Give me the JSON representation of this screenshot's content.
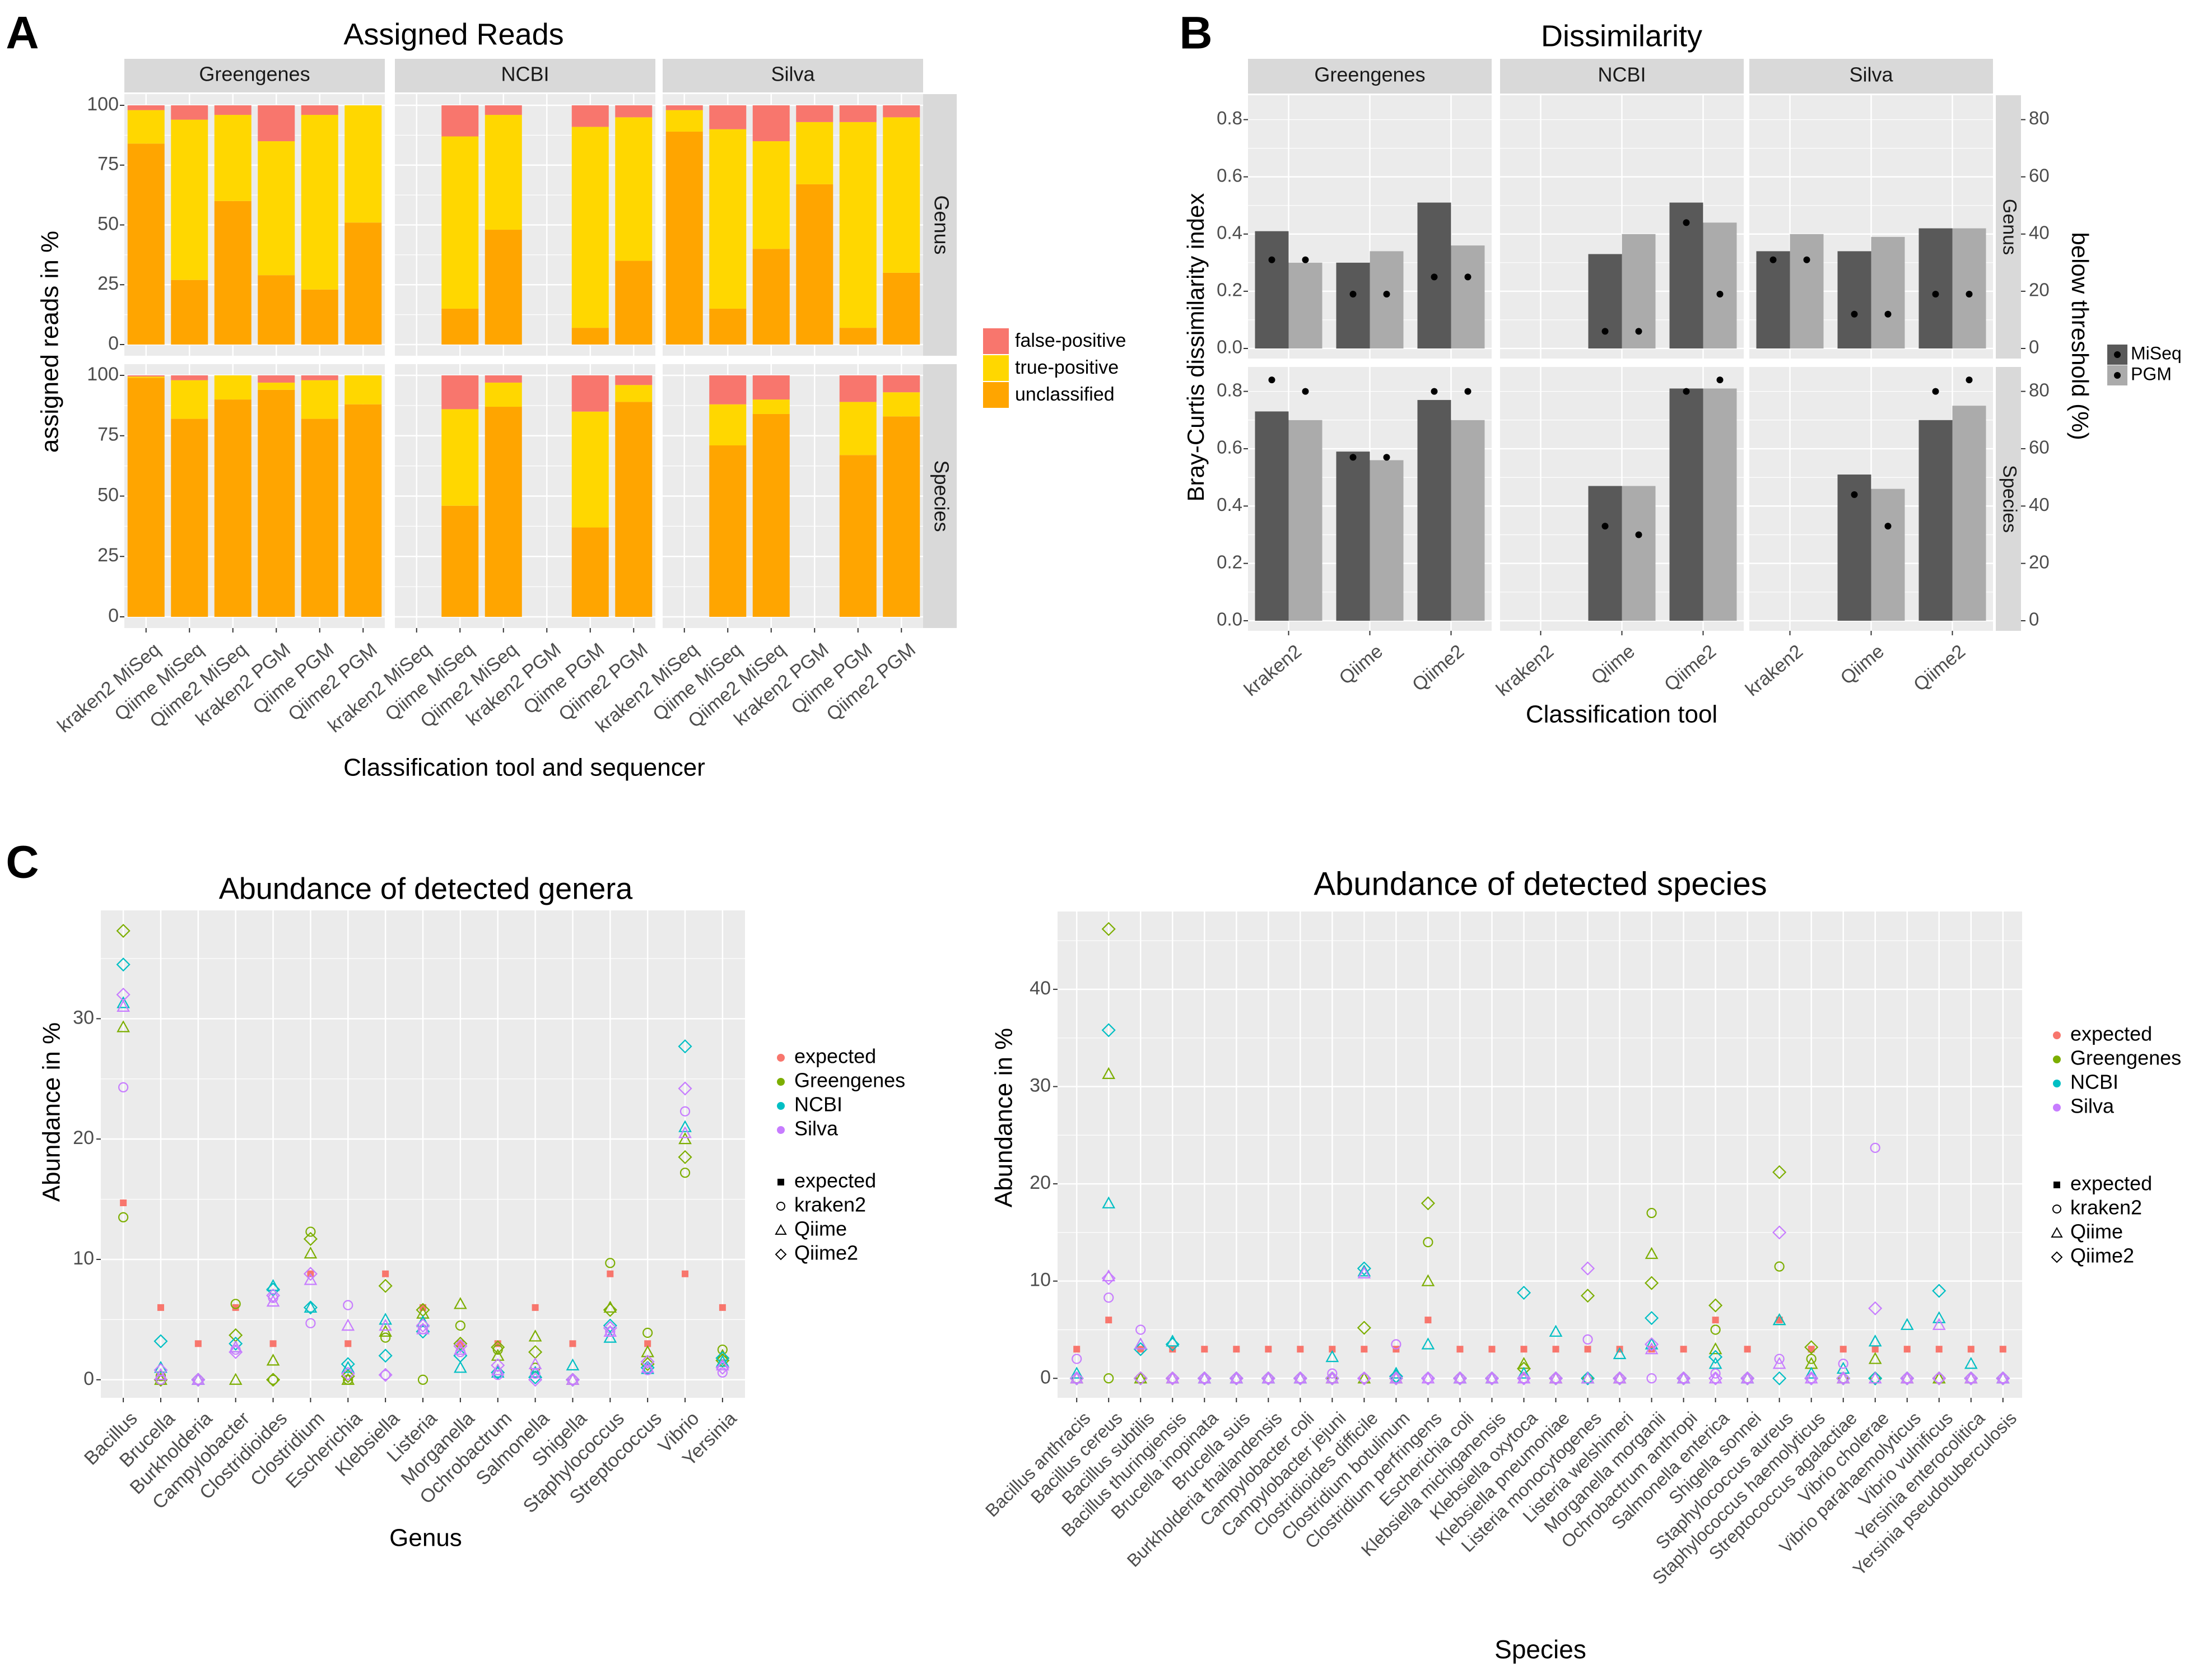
{
  "colors": {
    "false_positive": "#F8766D",
    "true_positive": "#FFD700",
    "unclassified": "#FFA500",
    "miseq": "#595959",
    "pgm": "#ABABAB",
    "expected": "#F8766D",
    "greengenes": "#7CAE00",
    "ncbi": "#00BFC4",
    "silva": "#C77CFF",
    "panel_bg": "#EBEBEB",
    "strip_bg": "#D9D9D9"
  },
  "panel_labels": [
    "A",
    "B",
    "C"
  ],
  "chart_data": [
    {
      "id": "A",
      "type": "bar",
      "stacked": true,
      "title": "Assigned Reads",
      "xlabel": "Classification tool and sequencer",
      "ylabel": "assigned reads in %",
      "ylim": [
        0,
        100
      ],
      "yticks": [
        "0",
        "25",
        "50",
        "75",
        "100"
      ],
      "facet_cols": [
        "Greengenes",
        "NCBI",
        "Silva"
      ],
      "facet_rows": [
        "Genus",
        "Species"
      ],
      "categories": [
        "kraken2 MiSeq",
        "Qiime MiSeq",
        "Qiime2 MiSeq",
        "kraken2 PGM",
        "Qiime PGM",
        "Qiime2 PGM"
      ],
      "legend": [
        "false-positive",
        "true-positive",
        "unclassified"
      ],
      "data": {
        "Genus": {
          "Greengenes": [
            [
              84,
              14,
              2
            ],
            [
              27,
              67,
              6
            ],
            [
              60,
              36,
              4
            ],
            [
              29,
              56,
              15
            ],
            [
              23,
              73,
              4
            ],
            [
              51,
              49,
              0
            ]
          ],
          "NCBI": [
            null,
            [
              15,
              72,
              13
            ],
            [
              48,
              48,
              4
            ],
            null,
            [
              7,
              84,
              9
            ],
            [
              35,
              60,
              5
            ]
          ],
          "Silva": [
            [
              89,
              9,
              2
            ],
            [
              15,
              75,
              10
            ],
            [
              40,
              45,
              15
            ],
            [
              67,
              26,
              7
            ],
            [
              7,
              86,
              7
            ],
            [
              30,
              65,
              5
            ]
          ]
        },
        "Species": {
          "Greengenes": [
            [
              99,
              0.5,
              0.5
            ],
            [
              82,
              16,
              2
            ],
            [
              90,
              10,
              0
            ],
            [
              94,
              3,
              3
            ],
            [
              82,
              16,
              2
            ],
            [
              88,
              12,
              0
            ]
          ],
          "NCBI": [
            null,
            [
              46,
              40,
              14
            ],
            [
              87,
              10,
              3
            ],
            null,
            [
              37,
              48,
              15
            ],
            [
              89,
              7,
              4
            ]
          ],
          "Silva": [
            null,
            [
              71,
              17,
              12
            ],
            [
              84,
              6,
              10
            ],
            null,
            [
              67,
              22,
              11
            ],
            [
              83,
              10,
              7
            ]
          ]
        }
      }
    },
    {
      "id": "B",
      "type": "bar",
      "title": "Dissimilarity",
      "xlabel": "Classification tool",
      "ylabel": "Bray-Curtis dissimilarity index",
      "y2label": "below threshold (%)",
      "ylim": [
        0,
        0.85
      ],
      "yticks": [
        "0.0",
        "0.2",
        "0.4",
        "0.6",
        "0.8"
      ],
      "y2ticks": [
        "0",
        "20",
        "40",
        "60",
        "80"
      ],
      "facet_cols": [
        "Greengenes",
        "NCBI",
        "Silva"
      ],
      "facet_rows": [
        "Genus",
        "Species"
      ],
      "categories": [
        "kraken2",
        "Qiime",
        "Qiime2"
      ],
      "legend": [
        "MiSeq",
        "PGM"
      ],
      "data": {
        "Genus": {
          "Greengenes": [
            [
              0.41,
              0.3
            ],
            [
              0.3,
              0.34
            ],
            [
              0.51,
              0.36
            ]
          ],
          "NCBI": [
            [
              null,
              null
            ],
            [
              0.33,
              0.4
            ],
            [
              0.51,
              0.44
            ]
          ],
          "Silva": [
            [
              0.34,
              0.4
            ],
            [
              0.34,
              0.39
            ],
            [
              0.42,
              0.42
            ]
          ]
        },
        "Species": {
          "Greengenes": [
            [
              0.73,
              0.7
            ],
            [
              0.59,
              0.56
            ],
            [
              0.77,
              0.7
            ]
          ],
          "NCBI": [
            [
              null,
              null
            ],
            [
              0.47,
              0.47
            ],
            [
              0.81,
              0.81
            ]
          ],
          "Silva": [
            [
              null,
              null
            ],
            [
              0.51,
              0.46
            ],
            [
              0.7,
              0.75
            ]
          ]
        }
      },
      "threshold_points": {
        "Genus": {
          "Greengenes": [
            [
              31,
              31
            ],
            [
              19,
              19
            ],
            [
              25,
              25
            ]
          ],
          "NCBI": [
            [
              null,
              null
            ],
            [
              6,
              6
            ],
            [
              44,
              19
            ]
          ],
          "Silva": [
            [
              31,
              31
            ],
            [
              12,
              12
            ],
            [
              19,
              19
            ]
          ]
        },
        "Species": {
          "Greengenes": [
            [
              84,
              80
            ],
            [
              57,
              57
            ],
            [
              80,
              80
            ]
          ],
          "NCBI": [
            [
              null,
              null
            ],
            [
              33,
              30
            ],
            [
              80,
              84
            ]
          ],
          "Silva": [
            [
              null,
              null
            ],
            [
              44,
              33
            ],
            [
              80,
              84
            ]
          ]
        }
      }
    },
    {
      "id": "C1",
      "type": "scatter",
      "title": "Abundance of detected genera",
      "xlabel": "Genus",
      "ylabel": "Abundance in %",
      "ylim": [
        -1.5,
        39
      ],
      "yticks": [
        0,
        10,
        20,
        30
      ],
      "categories": [
        "Bacillus",
        "Brucella",
        "Burkholderia",
        "Campylobacter",
        "Clostridioides",
        "Clostridium",
        "Escherichia",
        "Klebsiella",
        "Listeria",
        "Morganella",
        "Ochrobactrum",
        "Salmonella",
        "Shigella",
        "Staphylococcus",
        "Streptococcus",
        "Vibrio",
        "Yersinia"
      ],
      "legend_color": [
        "expected",
        "Greengenes",
        "NCBI",
        "Silva"
      ],
      "legend_shape": [
        "expected",
        "kraken2",
        "Qiime",
        "Qiime2"
      ],
      "expected": [
        14.7,
        6,
        3,
        6,
        3,
        8.8,
        3,
        8.8,
        6,
        3,
        3,
        6,
        3,
        8.8,
        3,
        8.8,
        6
      ],
      "observed": {
        "Greengenes": {
          "kraken2": [
            13.5,
            0.3,
            0,
            6.3,
            0,
            12.3,
            0,
            3.5,
            0,
            4.5,
            2.5,
            1.0,
            0,
            9.7,
            3.9,
            17.2,
            2.5
          ],
          "Qiime": [
            29.3,
            0,
            0,
            0,
            1.6,
            10.5,
            0,
            4.0,
            5.5,
            6.3,
            2.0,
            3.6,
            0,
            6.0,
            2.3,
            20.0,
            2.0
          ],
          "Qiime2": [
            37.3,
            0,
            0,
            3.7,
            0,
            11.7,
            0.3,
            7.8,
            5.8,
            3.0,
            2.7,
            2.3,
            0,
            5.8,
            1.3,
            18.5,
            1.6
          ]
        },
        "NCBI": {
          "kraken2": [
            null,
            null,
            null,
            null,
            null,
            null,
            null,
            null,
            null,
            null,
            null,
            null,
            null,
            null,
            null,
            null,
            null
          ],
          "Qiime": [
            31.3,
            1.0,
            0,
            2.7,
            7.8,
            6.0,
            1.0,
            5.0,
            4.8,
            1.0,
            0.6,
            0.6,
            1.2,
            3.5,
            0.9,
            21.0,
            1.5
          ],
          "Qiime2": [
            34.5,
            3.2,
            0,
            3.0,
            7.5,
            6.0,
            1.3,
            2.0,
            4.0,
            2.0,
            0.6,
            0.2,
            0,
            4.5,
            1.0,
            27.7,
            1.8
          ]
        },
        "Silva": {
          "kraken2": [
            24.3,
            0,
            0,
            2.5,
            6.8,
            4.7,
            6.2,
            0.4,
            4.2,
            2.3,
            0.4,
            0.5,
            0,
            4.0,
            0.8,
            22.3,
            0.6
          ],
          "Qiime": [
            31.0,
            0.4,
            0,
            2.7,
            6.5,
            8.3,
            4.5,
            4.5,
            4.2,
            2.5,
            0.8,
            1.3,
            0,
            4.0,
            1.0,
            20.5,
            1.2
          ],
          "Qiime2": [
            32.0,
            0.8,
            0,
            2.3,
            7.0,
            8.8,
            0.5,
            0.4,
            4.5,
            2.8,
            1.2,
            0,
            0,
            4.3,
            1.5,
            24.2,
            1.0
          ]
        }
      }
    },
    {
      "id": "C2",
      "type": "scatter",
      "title": "Abundance of detected species",
      "xlabel": "Species",
      "ylabel": "Abundance in %",
      "ylim": [
        -2,
        48
      ],
      "yticks": [
        0,
        10,
        20,
        30,
        40
      ],
      "categories": [
        "Bacillus anthracis",
        "Bacillus cereus",
        "Bacillus subtilis",
        "Bacillus thuringiensis",
        "Brucella inopinata",
        "Brucella suis",
        "Burkholderia thailandensis",
        "Campylobacter coli",
        "Campylobacter jejuni",
        "Clostridioides difficile",
        "Clostridium botulinum",
        "Clostridium perfringens",
        "Escherichia coli",
        "Klebsiella michiganensis",
        "Klebsiella oxytoca",
        "Klebsiella pneumoniae",
        "Listeria monocytogenes",
        "Listeria welshimeri",
        "Morganella morganii",
        "Ochrobactrum anthropi",
        "Salmonella enterica",
        "Shigella sonnei",
        "Staphylococcus aureus",
        "Staphylococcus haemolyticus",
        "Streptococcus agalactiae",
        "Vibrio cholerae",
        "Vibrio parahaemolyticus",
        "Vibrio vulnificus",
        "Yersinia enterocolitica",
        "Yersinia pseudotuberculosis"
      ],
      "legend_color": [
        "expected",
        "Greengenes",
        "NCBI",
        "Silva"
      ],
      "legend_shape": [
        "expected",
        "kraken2",
        "Qiime",
        "Qiime2"
      ],
      "expected": [
        3,
        6,
        3,
        3,
        3,
        3,
        3,
        3,
        3,
        3,
        3,
        6,
        3,
        3,
        3,
        3,
        3,
        3,
        3,
        3,
        6,
        3,
        6,
        3,
        3,
        3,
        3,
        3,
        3,
        3
      ],
      "observed": {
        "Greengenes": {
          "kraken2": [
            0,
            0,
            0,
            0,
            0,
            0,
            0,
            0,
            0,
            0,
            0,
            14.0,
            0,
            0,
            0,
            0,
            0,
            0,
            17.0,
            0,
            5.0,
            0,
            11.5,
            2.0,
            0,
            0,
            0,
            0,
            0,
            0
          ],
          "Qiime": [
            0,
            31.3,
            0,
            0,
            0,
            0,
            0,
            0,
            0,
            0,
            0,
            10.0,
            0,
            0,
            1.5,
            0,
            0,
            0,
            12.8,
            0,
            3.0,
            0,
            6.0,
            1.5,
            0,
            2.0,
            0,
            0,
            0,
            0
          ],
          "Qiime2": [
            0,
            46.2,
            0,
            0,
            0,
            0,
            0,
            0,
            0,
            5.2,
            0,
            18.0,
            0,
            0,
            1.0,
            0,
            8.5,
            0,
            9.8,
            0,
            7.5,
            0,
            21.2,
            3.2,
            0,
            0,
            0,
            0,
            0,
            0
          ]
        },
        "NCBI": {
          "kraken2": [
            null,
            null,
            null,
            null,
            null,
            null,
            null,
            null,
            null,
            null,
            null,
            null,
            null,
            null,
            null,
            null,
            null,
            null,
            null,
            null,
            null,
            null,
            null,
            null,
            null,
            null,
            null,
            null,
            null,
            null
          ],
          "Qiime": [
            0.5,
            18.0,
            3.5,
            3.8,
            0,
            0,
            0,
            0,
            2.2,
            11.0,
            0.5,
            3.5,
            0,
            0,
            0.5,
            4.8,
            0,
            2.5,
            3.5,
            0,
            1.5,
            0,
            6.0,
            0.5,
            1.0,
            3.8,
            5.5,
            6.2,
            1.5,
            0
          ],
          "Qiime2": [
            0,
            35.8,
            3.0,
            3.5,
            0,
            0,
            0,
            0,
            0,
            11.3,
            0.2,
            0,
            0,
            0,
            8.8,
            0,
            0,
            0,
            6.2,
            0,
            2.2,
            0,
            0,
            0,
            0,
            0,
            0,
            9.0,
            0,
            0
          ]
        },
        "Silva": {
          "kraken2": [
            2.0,
            8.3,
            5.0,
            0,
            0,
            0,
            0,
            0,
            0.5,
            0,
            3.5,
            0,
            0,
            0,
            0,
            0,
            4.0,
            0,
            0,
            0,
            0.5,
            0,
            2.0,
            0,
            1.5,
            23.7,
            0,
            0,
            0,
            0
          ],
          "Qiime": [
            0,
            10.5,
            3.5,
            0,
            0,
            0,
            0,
            0,
            0,
            10.8,
            0,
            0,
            0,
            0,
            0,
            0,
            0,
            0,
            3.0,
            0,
            0,
            0,
            1.5,
            0,
            0,
            0,
            0,
            5.5,
            0,
            0
          ],
          "Qiime2": [
            0,
            10.3,
            0,
            0,
            0,
            0,
            0,
            0,
            0,
            0,
            0,
            0,
            0,
            0,
            0,
            0,
            11.3,
            0,
            3.5,
            0,
            0,
            0,
            15.0,
            0,
            0,
            7.2,
            0,
            0,
            0,
            0
          ]
        }
      }
    }
  ]
}
